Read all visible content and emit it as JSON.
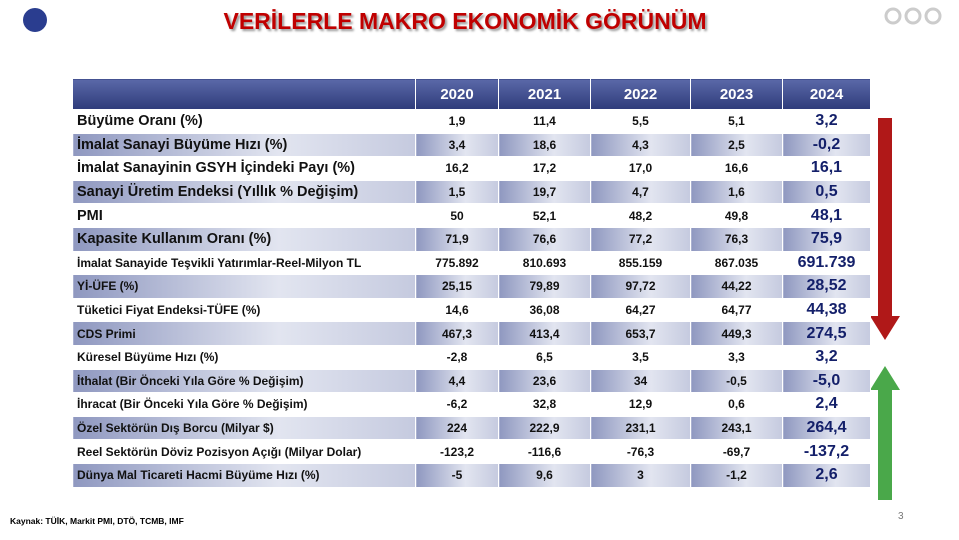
{
  "header": {
    "title": "VERİLERLE MAKRO EKONOMİK GÖRÜNÜM"
  },
  "table": {
    "columns": [
      "2020",
      "2021",
      "2022",
      "2023",
      "2024"
    ],
    "rows": [
      [
        "Büyüme Oranı (%)",
        "1,9",
        "11,4",
        "5,5",
        "5,1",
        "3,2"
      ],
      [
        "İmalat Sanayi Büyüme Hızı (%)",
        "3,4",
        "18,6",
        "4,3",
        "2,5",
        "-0,2"
      ],
      [
        "İmalat Sanayinin GSYH İçindeki Payı (%)",
        "16,2",
        "17,2",
        "17,0",
        "16,6",
        "16,1"
      ],
      [
        "Sanayi Üretim Endeksi (Yıllık % Değişim)",
        "1,5",
        "19,7",
        "4,7",
        "1,6",
        "0,5"
      ],
      [
        "PMI",
        "50",
        "52,1",
        "48,2",
        "49,8",
        "48,1"
      ],
      [
        "Kapasite Kullanım Oranı (%)",
        "71,9",
        "76,6",
        "77,2",
        "76,3",
        "75,9"
      ],
      [
        "İmalat Sanayide Teşvikli Yatırımlar-Reel-Milyon TL",
        "775.892",
        "810.693",
        "855.159",
        "867.035",
        "691.739"
      ],
      [
        "Yİ-ÜFE (%)",
        "25,15",
        "79,89",
        "97,72",
        "44,22",
        "28,52"
      ],
      [
        "Tüketici Fiyat Endeksi-TÜFE (%)",
        "14,6",
        "36,08",
        "64,27",
        "64,77",
        "44,38"
      ],
      [
        "CDS Primi",
        "467,3",
        "413,4",
        "653,7",
        "449,3",
        "274,5"
      ],
      [
        "Küresel Büyüme Hızı (%)",
        "-2,8",
        "6,5",
        "3,5",
        "3,3",
        "3,2"
      ],
      [
        "İthalat (Bir Önceki Yıla Göre % Değişim)",
        "4,4",
        "23,6",
        "34",
        "-0,5",
        "-5,0"
      ],
      [
        "İhracat (Bir Önceki Yıla Göre % Değişim)",
        "-6,2",
        "32,8",
        "12,9",
        "0,6",
        "2,4"
      ],
      [
        "Özel Sektörün Dış Borcu (Milyar $)",
        "224",
        "222,9",
        "231,1",
        "243,1",
        "264,4"
      ],
      [
        "Reel Sektörün Döviz Pozisyon Açığı (Milyar Dolar)",
        "-123,2",
        "-116,6",
        "-76,3",
        "-69,7",
        "-137,2"
      ],
      [
        "Dünya Mal Ticareti Hacmi Büyüme Hızı (%)",
        "-5",
        "9,6",
        "3",
        "-1,2",
        "2,6"
      ]
    ]
  },
  "footer": {
    "source": "Kaynak: TÜİK, Markit PMI, DTÖ, TCMB, IMF",
    "page": "3"
  }
}
